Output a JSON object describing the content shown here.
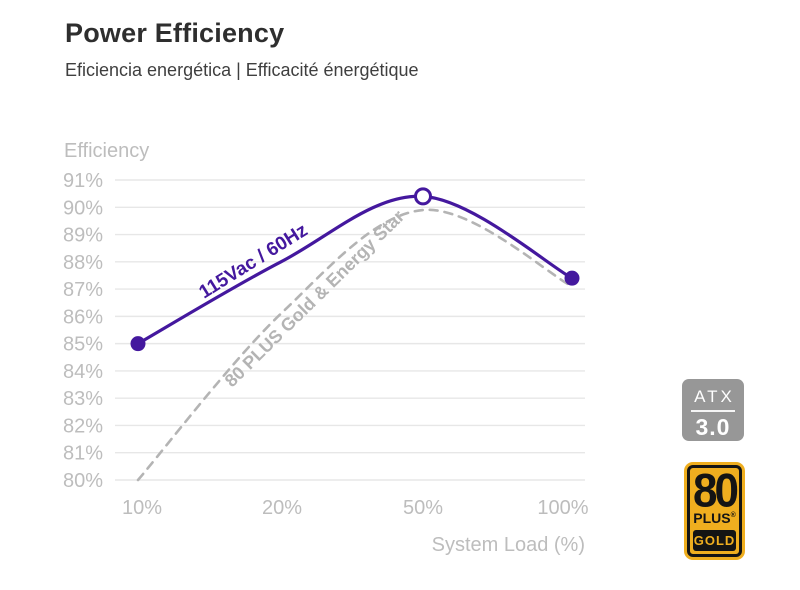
{
  "header": {
    "title": "Power Efficiency",
    "subtitle": "Eficiencia energética | Efficacité énergétique"
  },
  "chart_data": {
    "type": "line",
    "ylabel": "Efficiency",
    "xlabel": "System Load (%)",
    "x_values": [
      10,
      20,
      50,
      100
    ],
    "x_tick_labels": [
      "10%",
      "20%",
      "50%",
      "100%"
    ],
    "y_tick_values": [
      91,
      90,
      89,
      88,
      87,
      86,
      85,
      84,
      83,
      82,
      81,
      80
    ],
    "y_tick_labels": [
      "91%",
      "90%",
      "89%",
      "88%",
      "87%",
      "86%",
      "85%",
      "84%",
      "83%",
      "82%",
      "81%",
      "80%"
    ],
    "ylim": [
      80,
      91
    ],
    "grid": true,
    "legend_position": "inline-rotated-labels",
    "colors": {
      "grid": "#e7e7e7",
      "axis_text": "#bdbdbd"
    },
    "series": [
      {
        "name": "80 PLUS Gold & Energy Star",
        "values": [
          80,
          86.1,
          89.9,
          87.1
        ],
        "style": "dashed",
        "color": "#b4b4b4",
        "label_rotation": -44.5,
        "markers": []
      },
      {
        "name": "115Vac / 60Hz",
        "values": [
          85,
          88,
          90.4,
          87.4
        ],
        "style": "solid",
        "color": "#44189e",
        "label_rotation": -32,
        "markers": [
          {
            "index": 0,
            "type": "filled"
          },
          {
            "index": 2,
            "type": "open"
          },
          {
            "index": 3,
            "type": "filled"
          }
        ]
      }
    ]
  },
  "badges": {
    "atx": {
      "name": "ATX",
      "version": "3.0"
    },
    "eighty_plus": {
      "number": "80",
      "plus": "PLUS",
      "registered": "®",
      "tier": "GOLD"
    }
  }
}
